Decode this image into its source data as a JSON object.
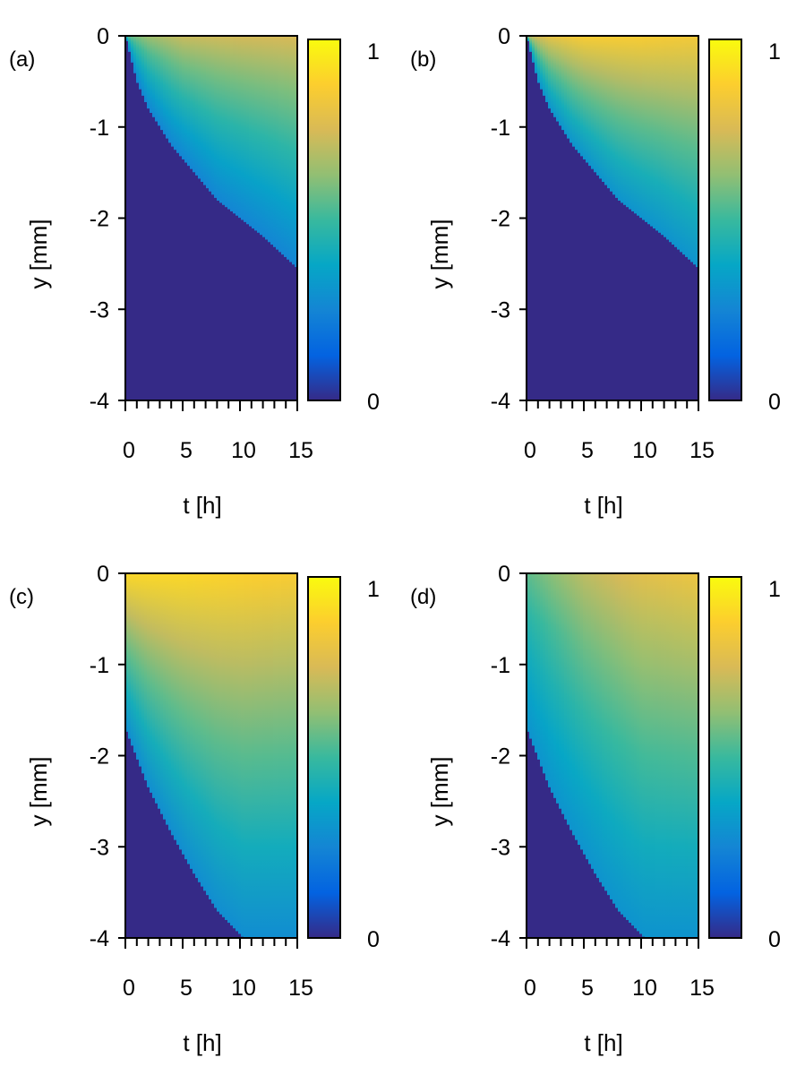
{
  "chart_data": [
    {
      "type": "heatmap",
      "panel_label": "(a)",
      "xlabel": "t [h]",
      "ylabel": "y [mm]",
      "xlim": [
        0,
        15
      ],
      "ylim": [
        -4,
        0
      ],
      "xticks": [
        "0",
        "5",
        "10",
        "15"
      ],
      "yticks": [
        "0",
        "-1",
        "-2",
        "-3",
        "-4"
      ],
      "colorbar": {
        "min_label": "0",
        "max_label": "1",
        "range": [
          0,
          1
        ]
      },
      "front": {
        "t": [
          0,
          1,
          2,
          4,
          6,
          8,
          10,
          12,
          15
        ],
        "y": [
          0,
          -0.5,
          -0.8,
          -1.2,
          -1.5,
          -1.8,
          -2.0,
          -2.2,
          -2.55
        ]
      },
      "surface_values": {
        "t": [
          0,
          2,
          5,
          10,
          15
        ],
        "value": [
          0.55,
          0.65,
          0.72,
          0.74,
          0.75
        ]
      },
      "front_value": 0.25,
      "background_value": 0.0
    },
    {
      "type": "heatmap",
      "panel_label": "(b)",
      "xlabel": "t [h]",
      "ylabel": "y [mm]",
      "xlim": [
        0,
        15
      ],
      "ylim": [
        -4,
        0
      ],
      "xticks": [
        "0",
        "5",
        "10",
        "15"
      ],
      "yticks": [
        "0",
        "-1",
        "-2",
        "-3",
        "-4"
      ],
      "colorbar": {
        "min_label": "0",
        "max_label": "1",
        "range": [
          0,
          1
        ]
      },
      "front": {
        "t": [
          0,
          1,
          2,
          4,
          6,
          8,
          10,
          12,
          15
        ],
        "y": [
          0,
          -0.5,
          -0.8,
          -1.2,
          -1.5,
          -1.8,
          -2.0,
          -2.2,
          -2.55
        ]
      },
      "surface_values": {
        "t": [
          0,
          2,
          5,
          10,
          15
        ],
        "value": [
          0.7,
          0.8,
          0.86,
          0.86,
          0.84
        ]
      },
      "front_value": 0.3,
      "background_value": 0.0
    },
    {
      "type": "heatmap",
      "panel_label": "(c)",
      "xlabel": "t [h]",
      "ylabel": "y [mm]",
      "xlim": [
        0,
        15
      ],
      "ylim": [
        -4,
        0
      ],
      "xticks": [
        "0",
        "5",
        "10",
        "15"
      ],
      "yticks": [
        "0",
        "-1",
        "-2",
        "-3",
        "-4"
      ],
      "colorbar": {
        "min_label": "0",
        "max_label": "1",
        "range": [
          0,
          1
        ]
      },
      "front": {
        "t": [
          0,
          2,
          4,
          6,
          8,
          10.3
        ],
        "y": [
          -1.7,
          -2.35,
          -2.85,
          -3.3,
          -3.7,
          -4.0
        ]
      },
      "surface_values": {
        "t": [
          0,
          5,
          10,
          15
        ],
        "value": [
          0.9,
          0.9,
          0.88,
          0.86
        ]
      },
      "front_value": 0.28,
      "background_value": 0.0
    },
    {
      "type": "heatmap",
      "panel_label": "(d)",
      "xlabel": "t [h]",
      "ylabel": "y [mm]",
      "xlim": [
        0,
        15
      ],
      "ylim": [
        -4,
        0
      ],
      "xticks": [
        "0",
        "5",
        "10",
        "15"
      ],
      "yticks": [
        "0",
        "-1",
        "-2",
        "-3",
        "-4"
      ],
      "colorbar": {
        "min_label": "0",
        "max_label": "1",
        "range": [
          0,
          1
        ]
      },
      "front": {
        "t": [
          0,
          2,
          4,
          6,
          8,
          10.3
        ],
        "y": [
          -1.7,
          -2.35,
          -2.85,
          -3.3,
          -3.7,
          -4.0
        ]
      },
      "surface_values": {
        "t": [
          0,
          5,
          10,
          15
        ],
        "value": [
          0.55,
          0.7,
          0.78,
          0.82
        ]
      },
      "front_value": 0.3,
      "background_value": 0.0
    }
  ],
  "colormap": {
    "name": "parula",
    "stops": [
      "#352a87",
      "#0363e1",
      "#1485d4",
      "#06a7c6",
      "#38b99e",
      "#92bf73",
      "#d9ba56",
      "#fcce2e",
      "#f9fb0e"
    ]
  }
}
